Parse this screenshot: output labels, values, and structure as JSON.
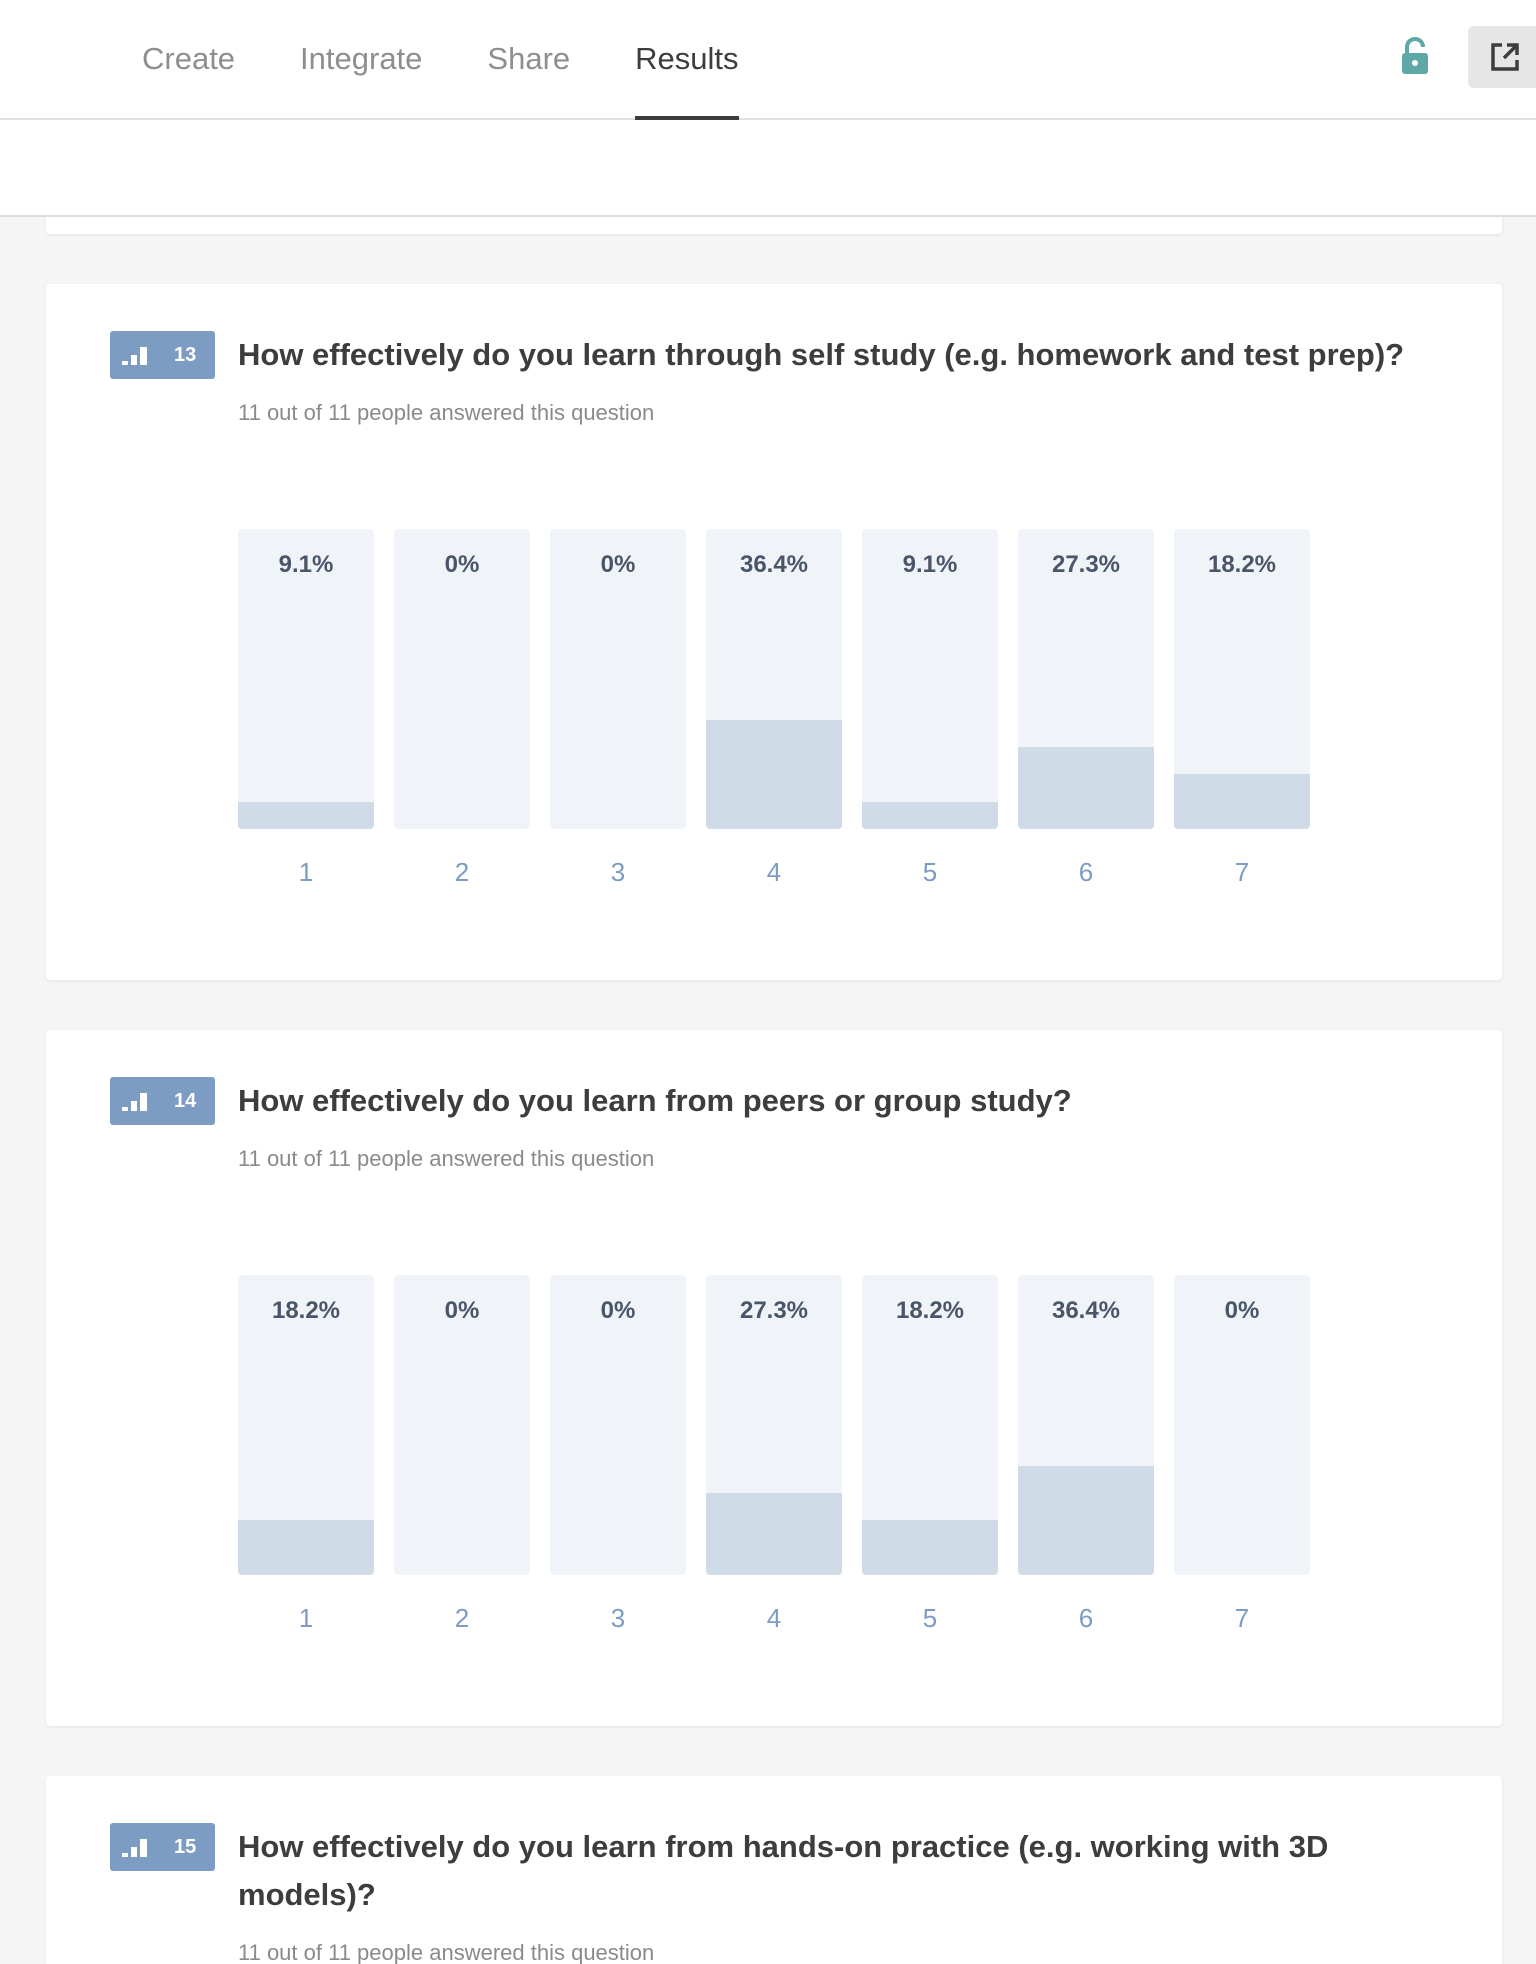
{
  "nav": {
    "tabs": [
      {
        "label": "Create"
      },
      {
        "label": "Integrate"
      },
      {
        "label": "Share"
      },
      {
        "label": "Results"
      }
    ],
    "active_tab": "Results",
    "lock_icon": "lock-icon",
    "external_icon": "external-link-icon"
  },
  "colors": {
    "accent": "#7d9cc4",
    "bar_track": "#f0f3f8",
    "bar_fill": "#d0dbe8",
    "lock": "#5fa8a8"
  },
  "questions": [
    {
      "number": "13",
      "title": "How effectively do you learn through self study (e.g. homework and test prep)?",
      "answered": "11 out of 11 people answered this question"
    },
    {
      "number": "14",
      "title": "How effectively do you learn from peers or group study?",
      "answered": "11 out of 11 people answered this question"
    },
    {
      "number": "15",
      "title": "How effectively do you learn from hands-on practice (e.g. working with 3D models)?",
      "answered": "11 out of 11 people answered this question"
    }
  ],
  "chart_data": [
    {
      "type": "bar",
      "question": "13",
      "categories": [
        "1",
        "2",
        "3",
        "4",
        "5",
        "6",
        "7"
      ],
      "values": [
        9.1,
        0,
        0,
        36.4,
        9.1,
        27.3,
        18.2
      ],
      "value_labels": [
        "9.1%",
        "0%",
        "0%",
        "36.4%",
        "9.1%",
        "27.3%",
        "18.2%"
      ],
      "ylim": [
        0,
        100
      ]
    },
    {
      "type": "bar",
      "question": "14",
      "categories": [
        "1",
        "2",
        "3",
        "4",
        "5",
        "6",
        "7"
      ],
      "values": [
        18.2,
        0,
        0,
        27.3,
        18.2,
        36.4,
        0
      ],
      "value_labels": [
        "18.2%",
        "0%",
        "0%",
        "27.3%",
        "18.2%",
        "36.4%",
        "0%"
      ],
      "ylim": [
        0,
        100
      ]
    }
  ]
}
